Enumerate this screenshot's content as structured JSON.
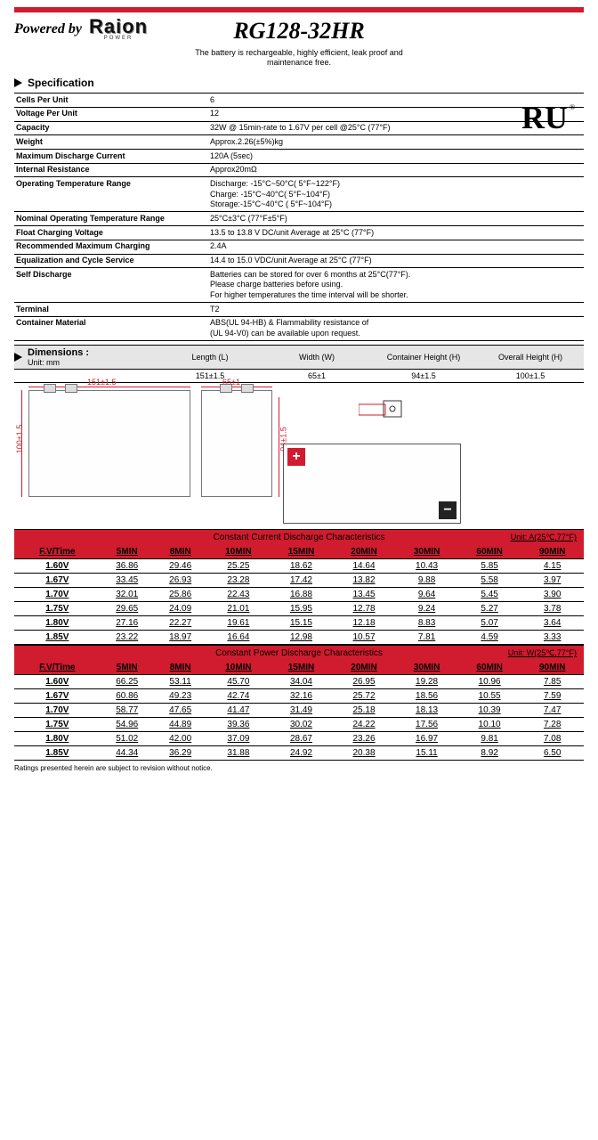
{
  "header": {
    "powered_by": "Powered by",
    "brand": "Raion",
    "brand_sub": "POWER",
    "model": "RG128-32HR",
    "subtitle": "The battery is rechargeable, highly efficient, leak proof and maintenance free."
  },
  "spec_section": {
    "title": "Specification"
  },
  "specs": [
    {
      "label": "Cells Per Unit",
      "value": "6"
    },
    {
      "label": "Voltage Per Unit",
      "value": "12"
    },
    {
      "label": "Capacity",
      "value": "32W @ 15min-rate to 1.67V per cell @25°C (77°F)"
    },
    {
      "label": "Weight",
      "value": "Approx.2.26(±5%)kg"
    },
    {
      "label": "Maximum Discharge Current",
      "value": "120A (5sec)"
    },
    {
      "label": "Internal Resistance",
      "value": "Approx20mΩ"
    },
    {
      "label": "Operating Temperature Range",
      "value": "Discharge: -15°C~50°C( 5°F~122°F)\nCharge: -15°C~40°C( 5°F~104°F)\nStorage:-15°C~40°C ( 5°F~104°F)"
    },
    {
      "label": "Nominal Operating Temperature Range",
      "value": "25°C±3°C (77°F±5°F)"
    },
    {
      "label": "Float Charging Voltage",
      "value": "13.5 to 13.8 V DC/unit Average at 25°C (77°F)"
    },
    {
      "label": "Recommended Maximum Charging",
      "value": "2.4A"
    },
    {
      "label": "Equalization and Cycle Service",
      "value": "14.4 to 15.0 VDC/unit Average at 25°C (77°F)"
    },
    {
      "label": "Self Discharge",
      "value": "Batteries can be stored for over 6 months at 25°C(77°F).\nPlease charge batteries before using.\nFor higher temperatures the time interval will be shorter."
    },
    {
      "label": "Terminal",
      "value": "T2"
    },
    {
      "label": "Container Material",
      "value": "ABS(UL 94-HB) & Flammability resistance of\n(UL 94-V0) can be available upon request."
    }
  ],
  "dimensions": {
    "title": "Dimensions :",
    "unit_label": "Unit: mm",
    "columns": [
      "Length (L)",
      "Width (W)",
      "Container Height (H)",
      "Overall Height (H)"
    ],
    "values": [
      "151±1.5",
      "65±1",
      "94±1.5",
      "100±1.5"
    ],
    "drawing_labels": {
      "length": "151±1.5",
      "width": "65±1",
      "height_c": "94±1.5",
      "height_o": "100±1.5"
    }
  },
  "current_table": {
    "title": "Constant Current Discharge Characteristics",
    "unit": "Unit: A(25℃,77°F)",
    "col_header": "F.V/Time",
    "columns": [
      "5MIN",
      "8MIN",
      "10MIN",
      "15MIN",
      "20MIN",
      "30MIN",
      "60MIN",
      "90MIN"
    ],
    "rows": [
      {
        "fv": "1.60V",
        "v": [
          "36.86",
          "29.46",
          "25.25",
          "18.62",
          "14.64",
          "10.43",
          "5.85",
          "4.15"
        ]
      },
      {
        "fv": "1.67V",
        "v": [
          "33.45",
          "26.93",
          "23.28",
          "17.42",
          "13.82",
          "9.88",
          "5.58",
          "3.97"
        ]
      },
      {
        "fv": "1.70V",
        "v": [
          "32.01",
          "25.86",
          "22.43",
          "16.88",
          "13.45",
          "9.64",
          "5.45",
          "3.90"
        ]
      },
      {
        "fv": "1.75V",
        "v": [
          "29.65",
          "24.09",
          "21.01",
          "15.95",
          "12.78",
          "9.24",
          "5.27",
          "3.78"
        ]
      },
      {
        "fv": "1.80V",
        "v": [
          "27.16",
          "22.27",
          "19.61",
          "15.15",
          "12.18",
          "8.83",
          "5.07",
          "3.64"
        ]
      },
      {
        "fv": "1.85V",
        "v": [
          "23.22",
          "18.97",
          "16.64",
          "12.98",
          "10.57",
          "7.81",
          "4.59",
          "3.33"
        ]
      }
    ]
  },
  "power_table": {
    "title": "Constant Power Discharge Characteristics",
    "unit": "Unit: W(25℃,77°F)",
    "col_header": "F.V/Time",
    "columns": [
      "5MIN",
      "8MIN",
      "10MIN",
      "15MIN",
      "20MIN",
      "30MIN",
      "60MIN",
      "90MIN"
    ],
    "rows": [
      {
        "fv": "1.60V",
        "v": [
          "66.25",
          "53.11",
          "45.70",
          "34.04",
          "26.95",
          "19.28",
          "10.96",
          "7.85"
        ]
      },
      {
        "fv": "1.67V",
        "v": [
          "60.86",
          "49.23",
          "42.74",
          "32.16",
          "25.72",
          "18.56",
          "10.55",
          "7.59"
        ]
      },
      {
        "fv": "1.70V",
        "v": [
          "58.77",
          "47.65",
          "41.47",
          "31.49",
          "25.18",
          "18.13",
          "10.39",
          "7.47"
        ]
      },
      {
        "fv": "1.75V",
        "v": [
          "54.96",
          "44.89",
          "39.36",
          "30.02",
          "24.22",
          "17.56",
          "10.10",
          "7.28"
        ]
      },
      {
        "fv": "1.80V",
        "v": [
          "51.02",
          "42.00",
          "37.09",
          "28.67",
          "23.26",
          "16.97",
          "9.81",
          "7.08"
        ]
      },
      {
        "fv": "1.85V",
        "v": [
          "44.34",
          "36.29",
          "31.88",
          "24.92",
          "20.38",
          "15.11",
          "8.92",
          "6.50"
        ]
      }
    ]
  },
  "footnote": "Ratings presented herein are subject to revision without notice.",
  "colors": {
    "accent": "#d01c2e",
    "grey": "#e6e6e6"
  }
}
